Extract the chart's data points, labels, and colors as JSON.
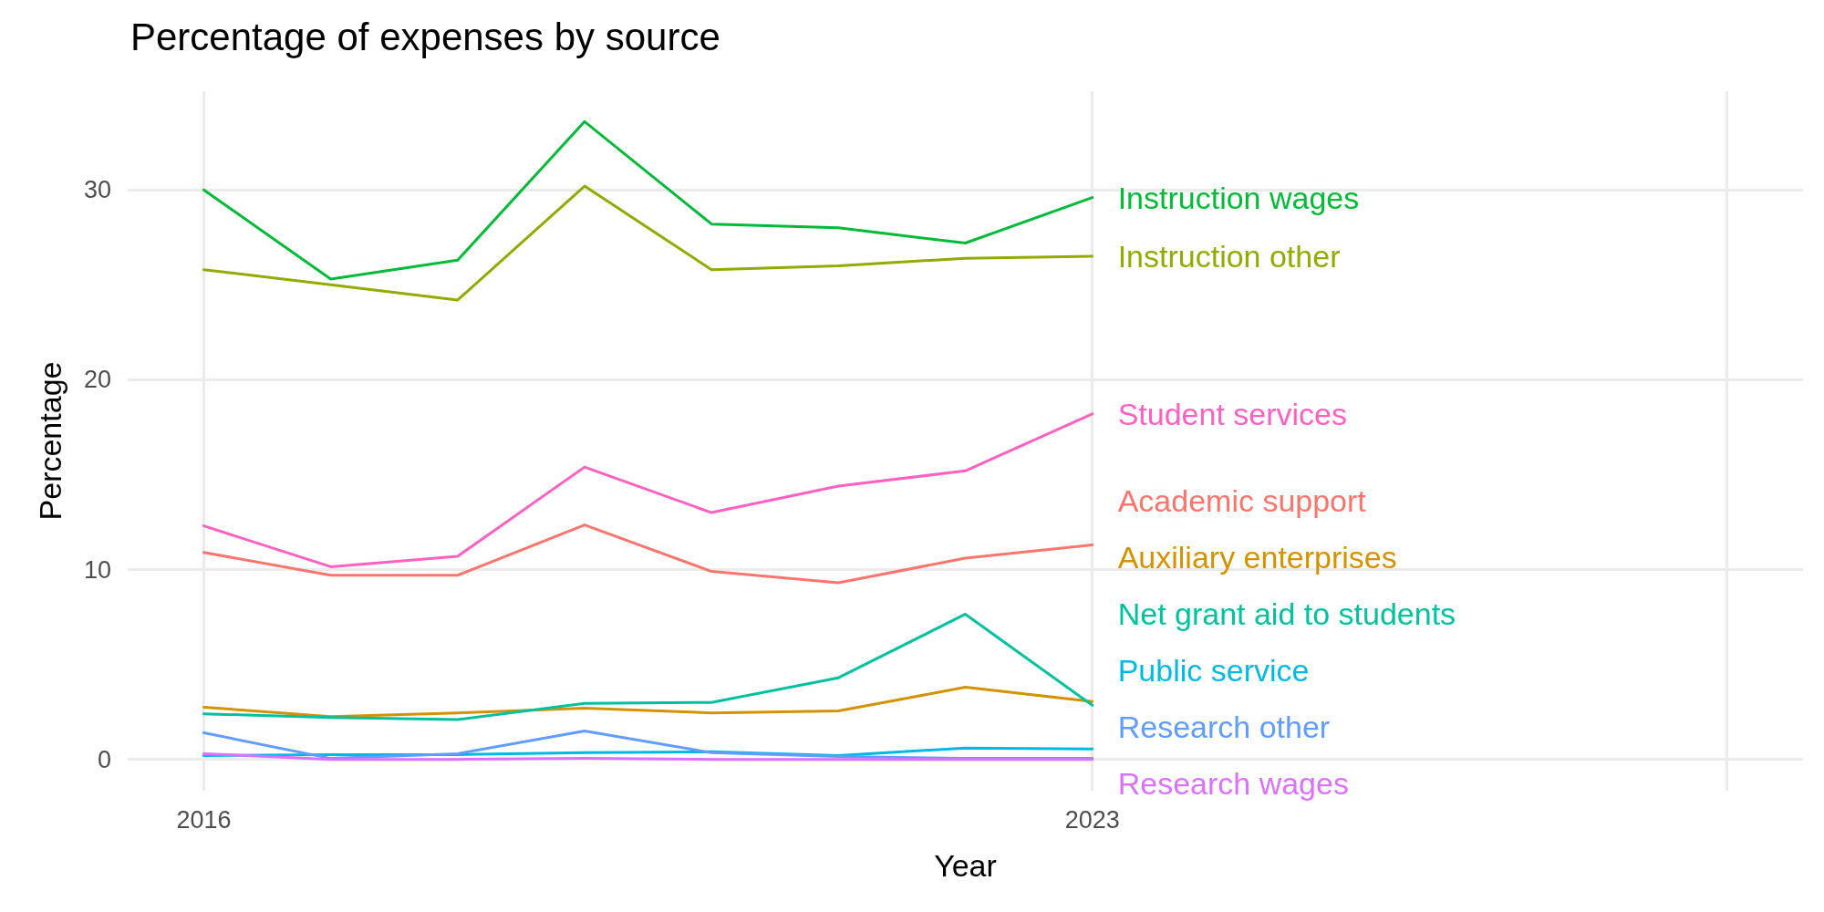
{
  "chart_data": {
    "type": "line",
    "title": "Percentage of expenses by source",
    "xlabel": "Year",
    "ylabel": "Percentage",
    "x": [
      2016,
      2017,
      2018,
      2019,
      2020,
      2021,
      2022,
      2023
    ],
    "xlim": [
      2015.4,
      2028.6
    ],
    "xticks": [
      2016,
      2023,
      {
        "value": 2028,
        "label": null
      }
    ],
    "ylim": [
      -1.65,
      35.2
    ],
    "yticks": [
      0,
      10,
      20,
      30
    ],
    "grid": true,
    "legend": false,
    "marker": "none",
    "line_style": "solid",
    "series": [
      {
        "name": "Instruction wages",
        "color": "#00ba38",
        "values": [
          30.0,
          25.3,
          26.3,
          33.6,
          28.2,
          28.0,
          27.2,
          29.6
        ]
      },
      {
        "name": "Instruction other",
        "color": "#93aa00",
        "values": [
          25.8,
          25.0,
          24.2,
          30.2,
          25.8,
          26.0,
          26.4,
          26.5
        ]
      },
      {
        "name": "Student services",
        "color": "#ff61c3",
        "values": [
          12.3,
          10.15,
          10.7,
          15.4,
          13.0,
          14.4,
          15.2,
          18.2
        ]
      },
      {
        "name": "Academic support",
        "color": "#f8766d",
        "values": [
          10.9,
          9.7,
          9.7,
          12.35,
          9.9,
          9.3,
          10.6,
          11.3
        ]
      },
      {
        "name": "Auxiliary enterprises",
        "color": "#d39200",
        "values": [
          2.75,
          2.25,
          2.45,
          2.7,
          2.45,
          2.55,
          3.8,
          3.05
        ]
      },
      {
        "name": "Net grant aid to students",
        "color": "#00c19f",
        "values": [
          2.4,
          2.2,
          2.1,
          2.95,
          3.0,
          4.3,
          7.65,
          2.85
        ]
      },
      {
        "name": "Public service",
        "color": "#00b9e3",
        "values": [
          0.2,
          0.25,
          0.25,
          0.35,
          0.4,
          0.2,
          0.6,
          0.55
        ]
      },
      {
        "name": "Research other",
        "color": "#619cff",
        "values": [
          1.4,
          0.05,
          0.3,
          1.5,
          0.35,
          0.15,
          0.05,
          0.05
        ]
      },
      {
        "name": "Research wages",
        "color": "#db72fb",
        "values": [
          0.3,
          0.0,
          0.0,
          0.05,
          0.0,
          0.0,
          0.0,
          0.0
        ]
      }
    ]
  }
}
